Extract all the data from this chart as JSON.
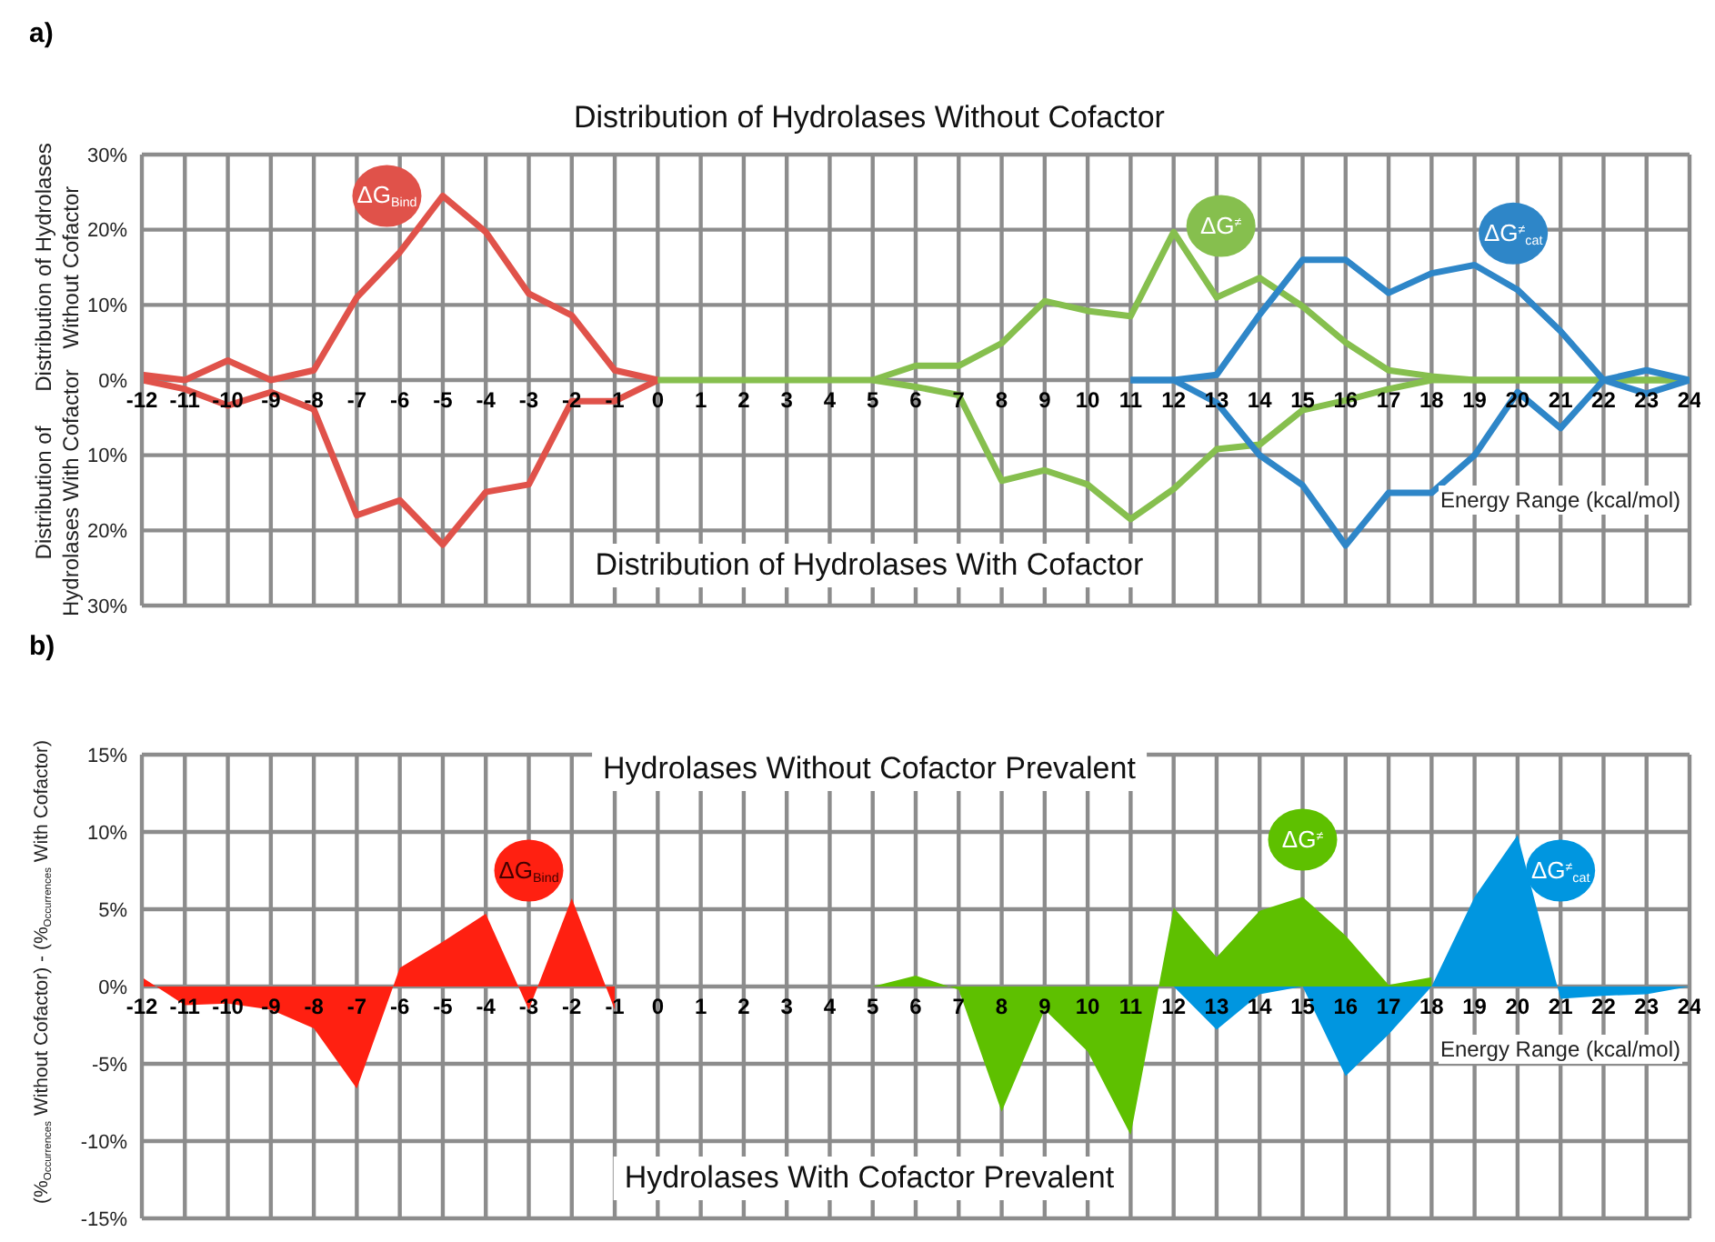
{
  "chart_data": [
    {
      "type": "line",
      "title": "a)",
      "ylabel": "Distribution of Hydrolases Without Cofactor",
      "xlabel": "Energy Range (kcal/mol)",
      "annotations": [
        "Distribution of Hydrolases Without Cofactor",
        "Distribution of Hydrolases With Cofactor",
        "Distribution of Hydrolases With Cofactor"
      ],
      "xlim": [
        -12,
        24
      ],
      "xticks": [
        -12,
        -11,
        -10,
        -9,
        -8,
        -7,
        -6,
        -5,
        -4,
        -3,
        -2,
        -1,
        0,
        1,
        2,
        3,
        4,
        5,
        6,
        7,
        8,
        9,
        10,
        11,
        12,
        13,
        14,
        15,
        16,
        17,
        18,
        19,
        20,
        21,
        22,
        23,
        24
      ],
      "ylim": [
        -30,
        30
      ],
      "yticks": [
        {
          "value": 30,
          "label": "30%"
        },
        {
          "value": 20,
          "label": "20%"
        },
        {
          "value": 10,
          "label": "10%"
        },
        {
          "value": 0,
          "label": "0%"
        },
        {
          "value": -10,
          "label": "10%"
        },
        {
          "value": -20,
          "label": "20%"
        },
        {
          "value": -30,
          "label": "30%"
        }
      ],
      "grid": true,
      "marker": "none",
      "line_style": "solid",
      "series": [
        {
          "name": "ΔG$_{Bind}$",
          "color": "#e0524a",
          "x": [
            -12,
            -11,
            -10,
            -9,
            -8,
            -7,
            -6,
            -5,
            -4,
            -3,
            -2,
            -1,
            0
          ],
          "values": [
            0.7,
            0,
            2.6,
            0,
            1.3,
            11,
            17,
            24.5,
            19.7,
            11.5,
            8.6,
            1.3,
            0
          ]
        },
        {
          "color": "#e0524a",
          "x": [
            -12,
            -11,
            -10,
            -9,
            -8,
            -7,
            -6,
            -5,
            -4,
            -3,
            -2,
            -1,
            0
          ],
          "values": [
            0,
            -1.2,
            -3.4,
            -1.6,
            -3.9,
            -18,
            -16,
            -21.9,
            -14.9,
            -13.9,
            -2.8,
            -2.8,
            0
          ]
        },
        {
          "name": "ΔG$^{≠}$",
          "color": "#86bf4e",
          "x": [
            0,
            1,
            2,
            3,
            4,
            5,
            6,
            7,
            8,
            9,
            10,
            11,
            12,
            13,
            14,
            15,
            16,
            17,
            18,
            19,
            20,
            21,
            22,
            23,
            24
          ],
          "values": [
            0,
            0,
            0,
            0,
            0,
            0,
            1.9,
            1.9,
            4.9,
            10.5,
            9.2,
            8.5,
            19.7,
            11,
            13.6,
            9.8,
            5,
            1.3,
            0.5,
            0,
            0,
            0,
            0,
            0,
            0
          ]
        },
        {
          "color": "#86bf4e",
          "x": [
            5,
            6,
            7,
            8,
            9,
            10,
            11,
            12,
            13,
            14,
            15,
            16,
            17,
            18,
            19,
            20,
            21,
            22,
            23,
            24
          ],
          "values": [
            0,
            -0.9,
            -2,
            -13.4,
            -12,
            -13.9,
            -18.5,
            -14.5,
            -9.2,
            -8.6,
            -4,
            -2.7,
            -1.2,
            0,
            0,
            0,
            0,
            0,
            0,
            0
          ]
        },
        {
          "name": "ΔG$^{≠}$$_{cat}$",
          "color": "#2e86c8",
          "x": [
            11,
            12,
            13,
            14,
            15,
            16,
            17,
            18,
            19,
            20,
            21,
            22,
            23,
            24
          ],
          "values": [
            0,
            0,
            0.7,
            8.7,
            16,
            16,
            11.6,
            14.2,
            15.3,
            12,
            6.5,
            0,
            1.3,
            0
          ]
        },
        {
          "color": "#2e86c8",
          "x": [
            11,
            12,
            13,
            14,
            15,
            16,
            17,
            18,
            19,
            20,
            21,
            22,
            23,
            24
          ],
          "values": [
            0,
            0,
            -3,
            -10,
            -14,
            -22,
            -15,
            -15,
            -10,
            -1.6,
            -6.4,
            0,
            -1.8,
            0
          ]
        }
      ]
    },
    {
      "type": "area",
      "title": "b)",
      "ylabel": "(%$_{Occurrences}$ Without Cofactor) - (%$_{Occurrences}$ With Cofactor)",
      "xlabel": "Energy Range (kcal/mol)",
      "annotations": [
        "Hydrolases Without Cofactor Prevalent",
        "Hydrolases With Cofactor Prevalent"
      ],
      "xlim": [
        -12,
        24
      ],
      "xticks": [
        -12,
        -11,
        -10,
        -9,
        -8,
        -7,
        -6,
        -5,
        -4,
        -3,
        -2,
        -1,
        0,
        1,
        2,
        3,
        4,
        5,
        6,
        7,
        8,
        9,
        10,
        11,
        12,
        13,
        14,
        15,
        16,
        17,
        18,
        19,
        20,
        21,
        22,
        23,
        24
      ],
      "ylim": [
        -15,
        15
      ],
      "yticks": [
        {
          "value": 15,
          "label": "15%"
        },
        {
          "value": 10,
          "label": "10%"
        },
        {
          "value": 5,
          "label": "5%"
        },
        {
          "value": 0,
          "label": "0%"
        },
        {
          "value": -5,
          "label": "-5%"
        },
        {
          "value": -10,
          "label": "-10%"
        },
        {
          "value": -15,
          "label": "-15%"
        }
      ],
      "grid": true,
      "series": [
        {
          "name": "ΔG$_{Bind}$",
          "color": "#ff2011",
          "x": [
            -12,
            -11,
            -10,
            -9,
            -8,
            -7,
            -6,
            -5,
            -4,
            -3,
            -2,
            -1
          ],
          "values": [
            0.6,
            -1.2,
            -1.1,
            -1.5,
            -2.7,
            -6.6,
            1.2,
            2.9,
            4.7,
            -1.5,
            5.7,
            -1.5
          ]
        },
        {
          "name": "ΔG$^{≠}$",
          "color": "#5ec000",
          "x": [
            5,
            6,
            7,
            8,
            9,
            10,
            11,
            12,
            13,
            14,
            15,
            16,
            17,
            18
          ],
          "values": [
            0,
            0.7,
            -0.2,
            -8.1,
            -1.5,
            -4.2,
            -9.6,
            5.1,
            1.9,
            4.9,
            5.8,
            3.3,
            0.1,
            0.6
          ]
        },
        {
          "name": "ΔG$^{≠}$$_{cat}$",
          "color": "#0096e0",
          "x": [
            12,
            13,
            14,
            15,
            16,
            17,
            18,
            19,
            20,
            21,
            22,
            23,
            24
          ],
          "values": [
            0,
            -2.8,
            -0.5,
            0,
            -5.8,
            -3.1,
            0,
            5.8,
            9.8,
            -0.8,
            -0.6,
            -0.5,
            0
          ]
        }
      ]
    }
  ]
}
